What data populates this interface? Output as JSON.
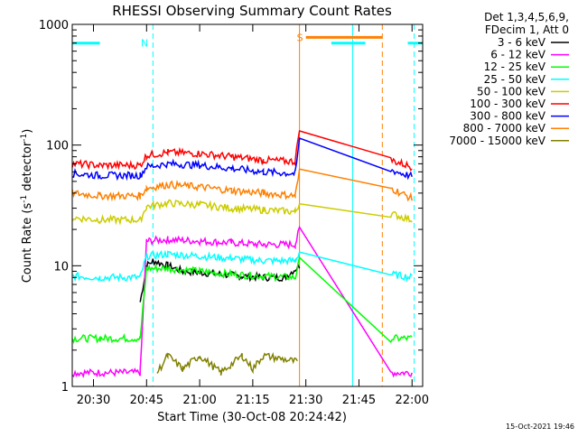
{
  "chart_data": {
    "type": "line",
    "title": "RHESSI Observing Summary Count Rates",
    "xlabel": "Start Time (30-Oct-08 20:24:42)",
    "ylabel_main": "Count Rate (s",
    "ylabel_sup1": "-1",
    "ylabel_mid": " detector",
    "ylabel_sup2": "-1",
    "ylabel_end": ")",
    "y_scale": "log",
    "ylim": [
      1,
      1000
    ],
    "xlim_minutes": [
      20.4,
      22.05
    ],
    "x_ticks": [
      {
        "label": "20:30",
        "value": 20.5
      },
      {
        "label": "20:45",
        "value": 20.75
      },
      {
        "label": "21:00",
        "value": 21.0
      },
      {
        "label": "21:15",
        "value": 21.25
      },
      {
        "label": "21:30",
        "value": 21.5
      },
      {
        "label": "21:45",
        "value": 21.75
      },
      {
        "label": "22:00",
        "value": 22.0
      }
    ],
    "y_ticks": [
      {
        "label": "1",
        "value": 1
      },
      {
        "label": "10",
        "value": 10
      },
      {
        "label": "100",
        "value": 100
      },
      {
        "label": "1000",
        "value": 1000
      }
    ],
    "legend_header": [
      "Det 1,3,4,5,6,9,",
      "FDecim 1, Att 0"
    ],
    "legend_position": "right, outside plot",
    "timestamp": "15-Oct-2021 19:46",
    "flag_bars": [
      {
        "label": "N",
        "color": "#00ffff",
        "segments": [
          [
            20.4,
            20.53
          ],
          [
            21.62,
            21.78
          ],
          [
            21.98,
            22.05
          ]
        ],
        "level": 700
      },
      {
        "label": "S",
        "color": "#ff8000",
        "segments": [
          [
            21.5,
            21.86
          ]
        ],
        "level": 780
      }
    ],
    "vlines": [
      {
        "x": 20.78,
        "color": "#00ffff",
        "dashed": true
      },
      {
        "x": 21.72,
        "color": "#00ffff",
        "dashed": false
      },
      {
        "x": 21.47,
        "color": "#ff8000",
        "dashed": false
      },
      {
        "x": 21.86,
        "color": "#ff8000",
        "dashed": true
      },
      {
        "x": 22.01,
        "color": "#00ffff",
        "dashed": true
      }
    ],
    "series": [
      {
        "name": "3 - 6 keV",
        "color": "#000000",
        "x": [
          20.72,
          20.75,
          20.78,
          20.85,
          20.92,
          21.0,
          21.1,
          21.2,
          21.3,
          21.4,
          21.47
        ],
        "y": [
          5,
          10,
          11,
          10,
          9,
          8.8,
          8.5,
          8.2,
          8,
          8,
          10
        ]
      },
      {
        "name": "6 - 12 keV",
        "color": "#ff00ff",
        "x": [
          20.4,
          20.53,
          20.72,
          20.75,
          20.85,
          21.0,
          21.15,
          21.3,
          21.45,
          21.47,
          21.9,
          22.0
        ],
        "y": [
          1.3,
          1.3,
          1.3,
          16,
          16.5,
          16,
          15.5,
          15,
          15,
          20,
          1.3,
          1.3
        ]
      },
      {
        "name": "12 - 25 keV",
        "color": "#00ff00",
        "x": [
          20.4,
          20.53,
          20.72,
          20.75,
          20.85,
          21.0,
          21.15,
          21.3,
          21.45,
          21.47,
          21.9,
          22.0
        ],
        "y": [
          2.5,
          2.5,
          2.5,
          9.5,
          9.5,
          9,
          8.5,
          8.2,
          8,
          11,
          2.5,
          2.5
        ]
      },
      {
        "name": "25 - 50 keV",
        "color": "#00ffff",
        "x": [
          20.4,
          20.53,
          20.72,
          20.75,
          20.85,
          21.0,
          21.15,
          21.3,
          21.45,
          21.47,
          21.9,
          22.0
        ],
        "y": [
          8.2,
          8,
          8,
          12,
          12.5,
          12,
          11.5,
          11,
          11,
          13,
          8.5,
          8
        ]
      },
      {
        "name": "50 - 100 keV",
        "color": "#cccc00",
        "x": [
          20.4,
          20.53,
          20.72,
          20.75,
          20.85,
          21.0,
          21.15,
          21.3,
          21.45,
          21.47,
          21.9,
          22.0
        ],
        "y": [
          25,
          24,
          24,
          31,
          33,
          32,
          30,
          29,
          28,
          33,
          27,
          24
        ]
      },
      {
        "name": "100 - 300 keV",
        "color": "#ff0000",
        "x": [
          20.4,
          20.53,
          20.72,
          20.75,
          20.85,
          21.0,
          21.15,
          21.3,
          21.45,
          21.47,
          21.9,
          22.0
        ],
        "y": [
          70,
          68,
          68,
          82,
          87,
          85,
          80,
          75,
          73,
          140,
          75,
          66
        ]
      },
      {
        "name": "300 - 800 keV",
        "color": "#0000ff",
        "x": [
          20.4,
          20.53,
          20.72,
          20.75,
          20.85,
          21.0,
          21.15,
          21.3,
          21.45,
          21.47,
          21.9,
          22.0
        ],
        "y": [
          58,
          56,
          56,
          66,
          70,
          68,
          64,
          60,
          58,
          110,
          62,
          55
        ]
      },
      {
        "name": "800 - 7000 keV",
        "color": "#ff8000",
        "x": [
          20.4,
          20.53,
          20.72,
          20.75,
          20.85,
          21.0,
          21.15,
          21.3,
          21.45,
          21.47,
          21.9,
          22.0
        ],
        "y": [
          40,
          38,
          38,
          44,
          47,
          45,
          42,
          40,
          38,
          60,
          44,
          36
        ]
      },
      {
        "name": "7000 - 15000 keV",
        "color": "#808000",
        "x": [
          20.8,
          20.85,
          20.92,
          21.0,
          21.1,
          21.2,
          21.25,
          21.3,
          21.46
        ],
        "y": [
          1.3,
          1.8,
          1.4,
          1.8,
          1.3,
          1.8,
          1.4,
          1.8,
          1.6
        ]
      }
    ]
  }
}
